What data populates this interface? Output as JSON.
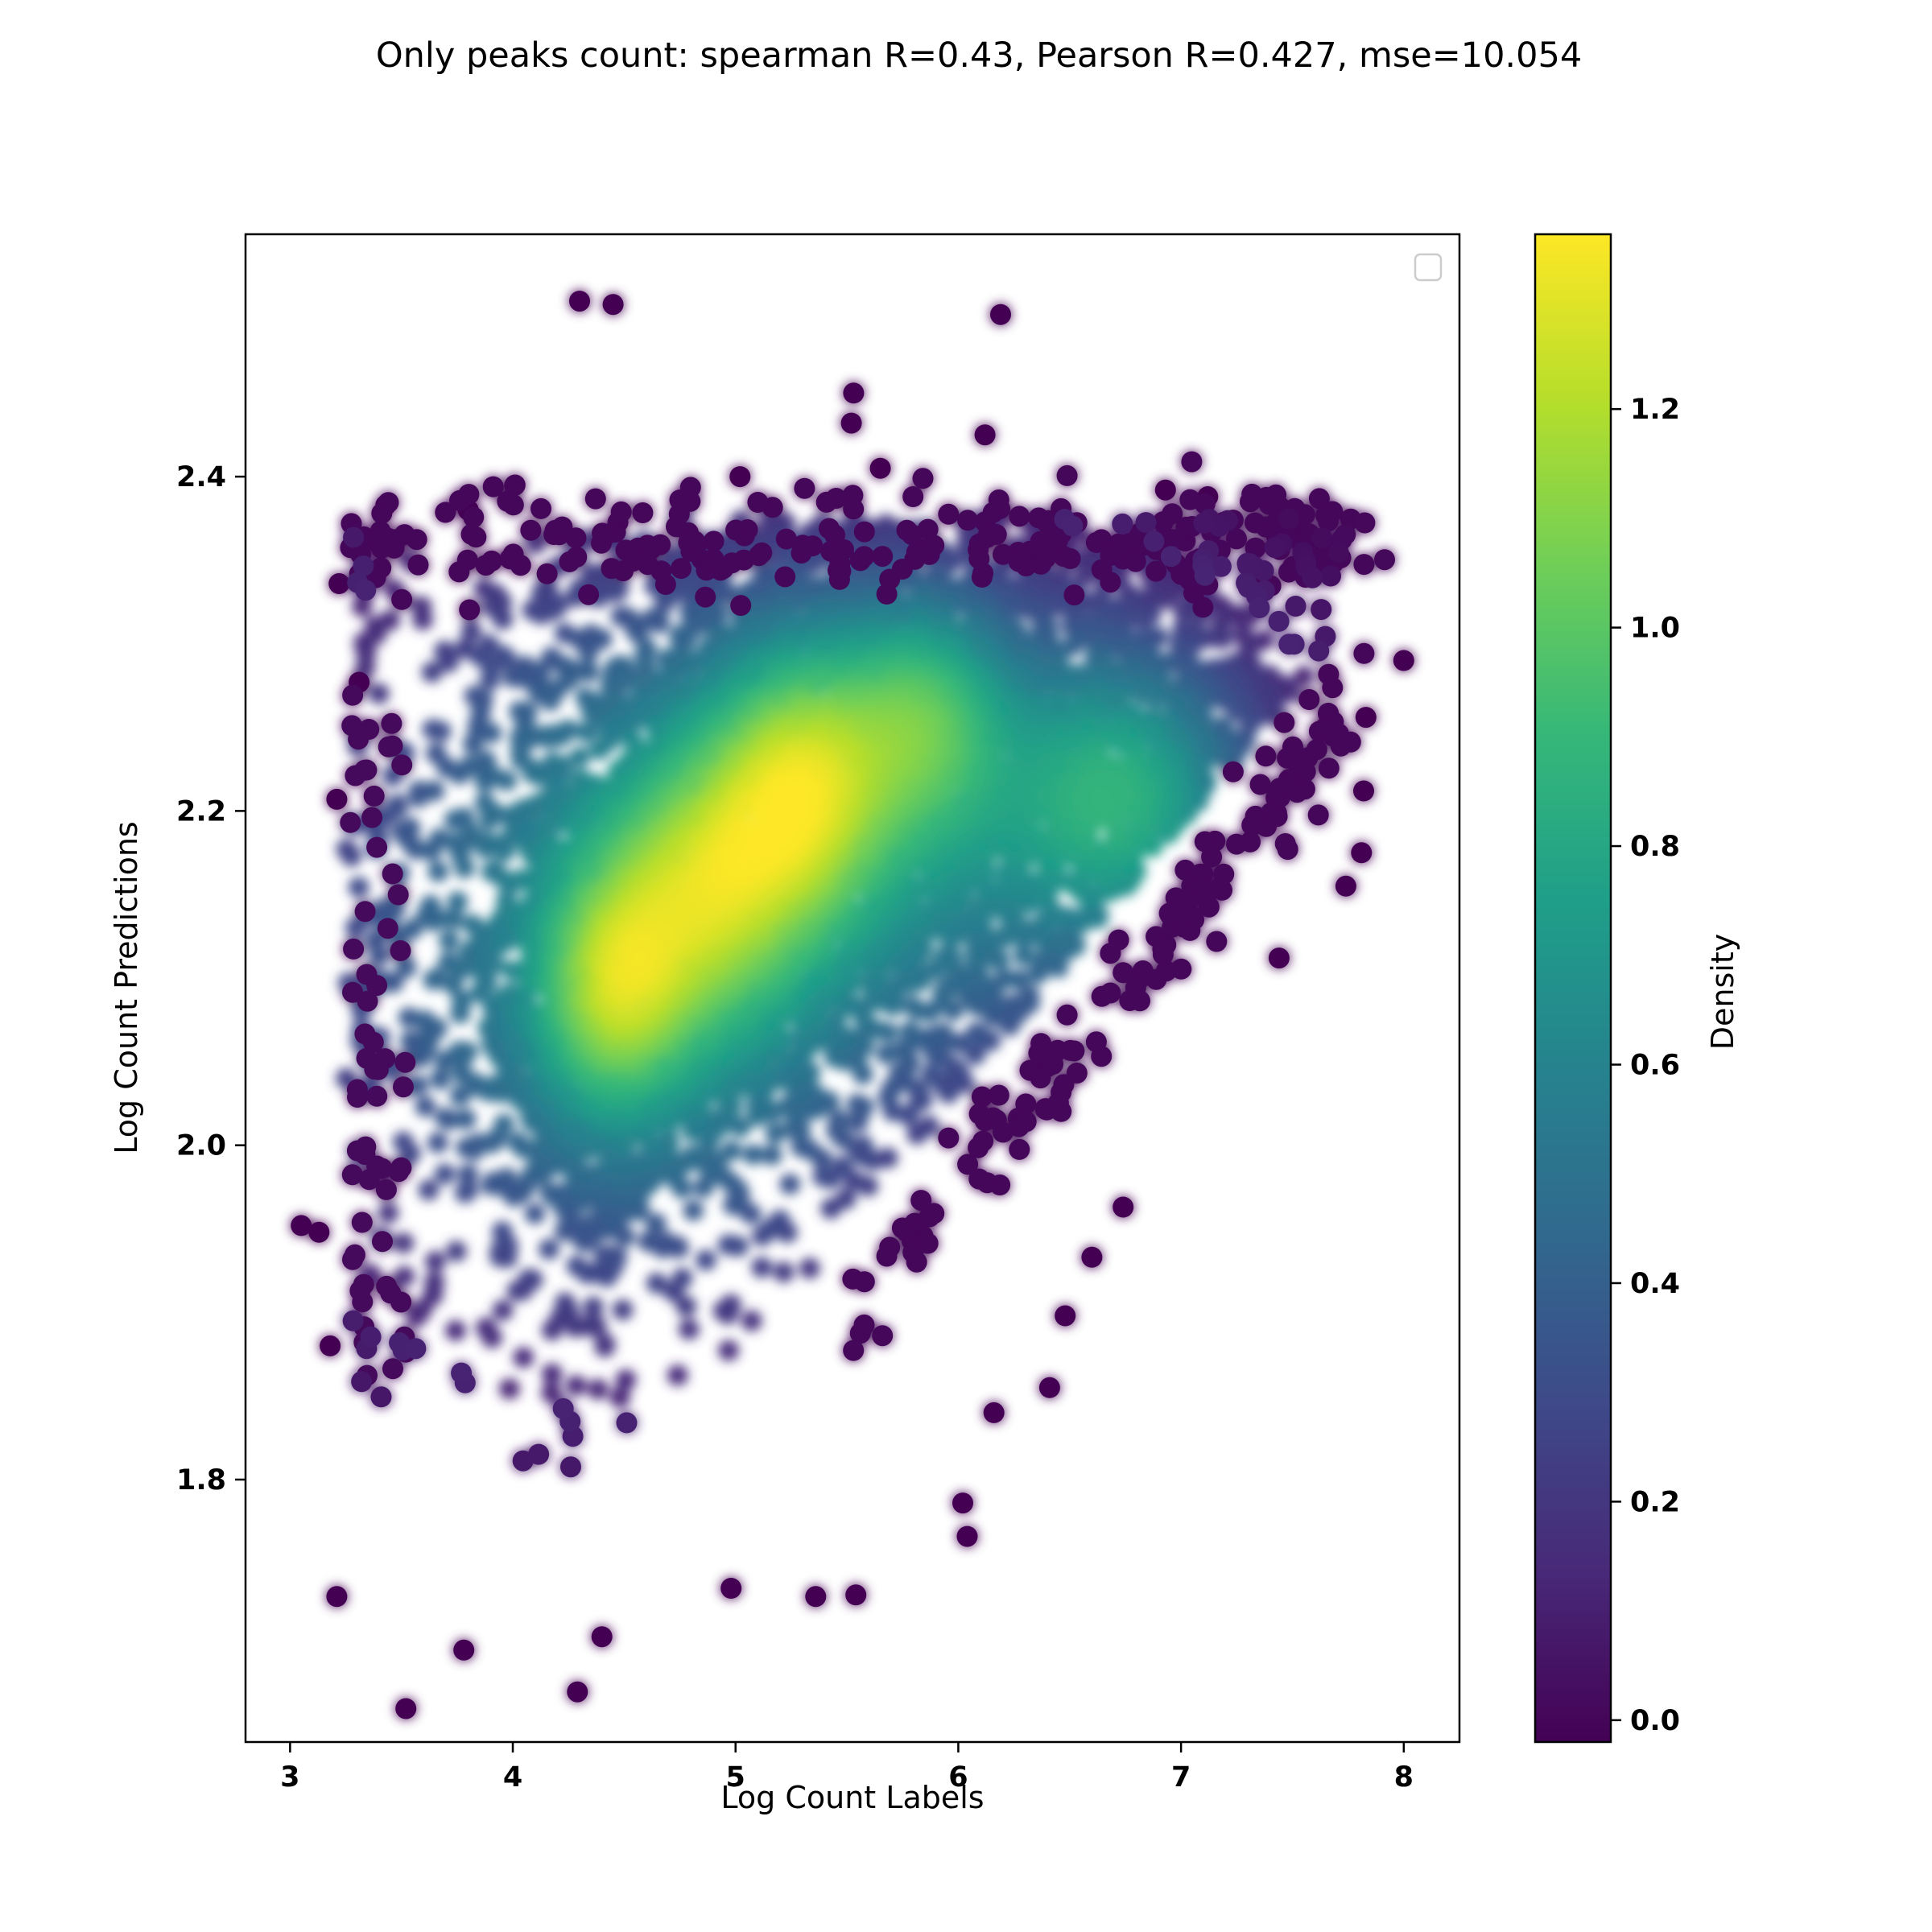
{
  "chart_data": {
    "type": "scatter",
    "title": "Only peaks count: spearman R=0.43, Pearson R=0.427, mse=10.054",
    "xlabel": "Log Count Labels",
    "ylabel": "Log Count Predictions",
    "xlim": [
      2.8,
      8.25
    ],
    "ylim": [
      1.643,
      2.545
    ],
    "x_ticks": [
      3,
      4,
      5,
      6,
      7,
      8
    ],
    "y_ticks": [
      1.8,
      2.0,
      2.2,
      2.4
    ],
    "y_tick_labels": [
      "1.8",
      "2.0",
      "2.2",
      "2.4"
    ],
    "colorbar": {
      "label": "Density",
      "colormap": "viridis",
      "range": [
        -0.02,
        1.36
      ],
      "ticks": [
        0.0,
        0.2,
        0.4,
        0.6,
        0.8,
        1.0,
        1.2
      ],
      "tick_labels": [
        "0.0",
        "0.2",
        "0.4",
        "0.6",
        "0.8",
        "1.0",
        "1.2"
      ],
      "colors": [
        "#440154",
        "#482878",
        "#3e4989",
        "#31688e",
        "#26828e",
        "#1f9e89",
        "#35b779",
        "#6ece58",
        "#b5de2b",
        "#fde725"
      ]
    },
    "legend": "top-right (empty)",
    "grid": false,
    "density_peaks": [
      {
        "x": 5.3,
        "y": 2.22,
        "density": 1.36
      },
      {
        "x": 4.85,
        "y": 2.15,
        "density": 1.3
      },
      {
        "x": 4.4,
        "y": 2.1,
        "density": 1.22
      },
      {
        "x": 4.6,
        "y": 2.05,
        "density": 1.0
      },
      {
        "x": 5.85,
        "y": 2.26,
        "density": 1.12
      },
      {
        "x": 6.75,
        "y": 2.21,
        "density": 1.05
      }
    ],
    "outliers": [
      {
        "x": 4.3,
        "y": 2.505
      },
      {
        "x": 4.45,
        "y": 2.503
      },
      {
        "x": 6.19,
        "y": 2.497
      },
      {
        "x": 5.53,
        "y": 2.45
      },
      {
        "x": 5.52,
        "y": 2.432
      },
      {
        "x": 6.12,
        "y": 2.425
      },
      {
        "x": 3.43,
        "y": 2.383
      },
      {
        "x": 3.8,
        "y": 2.38
      },
      {
        "x": 4.01,
        "y": 2.395
      },
      {
        "x": 3.05,
        "y": 1.952
      },
      {
        "x": 3.13,
        "y": 1.948
      },
      {
        "x": 3.18,
        "y": 1.88
      },
      {
        "x": 3.22,
        "y": 2.336
      },
      {
        "x": 3.21,
        "y": 2.207
      },
      {
        "x": 3.31,
        "y": 2.277
      },
      {
        "x": 3.52,
        "y": 1.663
      },
      {
        "x": 4.29,
        "y": 1.673
      },
      {
        "x": 4.4,
        "y": 1.706
      },
      {
        "x": 3.78,
        "y": 1.698
      },
      {
        "x": 3.21,
        "y": 1.73
      },
      {
        "x": 5.36,
        "y": 1.73
      },
      {
        "x": 5.54,
        "y": 1.731
      },
      {
        "x": 4.98,
        "y": 1.735
      },
      {
        "x": 6.04,
        "y": 1.766
      },
      {
        "x": 6.02,
        "y": 1.786
      },
      {
        "x": 6.16,
        "y": 1.84
      },
      {
        "x": 6.41,
        "y": 1.855
      },
      {
        "x": 6.48,
        "y": 1.898
      },
      {
        "x": 6.6,
        "y": 1.933
      },
      {
        "x": 6.74,
        "y": 1.963
      },
      {
        "x": 8.0,
        "y": 2.29
      },
      {
        "x": 7.83,
        "y": 2.256
      },
      {
        "x": 7.82,
        "y": 2.212
      },
      {
        "x": 7.81,
        "y": 2.175
      },
      {
        "x": 7.74,
        "y": 2.155
      },
      {
        "x": 7.44,
        "y": 2.112
      },
      {
        "x": 7.43,
        "y": 2.364
      },
      {
        "x": 7.58,
        "y": 2.361
      },
      {
        "x": 6.93,
        "y": 2.392
      },
      {
        "x": 7.12,
        "y": 2.388
      },
      {
        "x": 5.02,
        "y": 2.4
      },
      {
        "x": 5.65,
        "y": 2.405
      }
    ]
  }
}
